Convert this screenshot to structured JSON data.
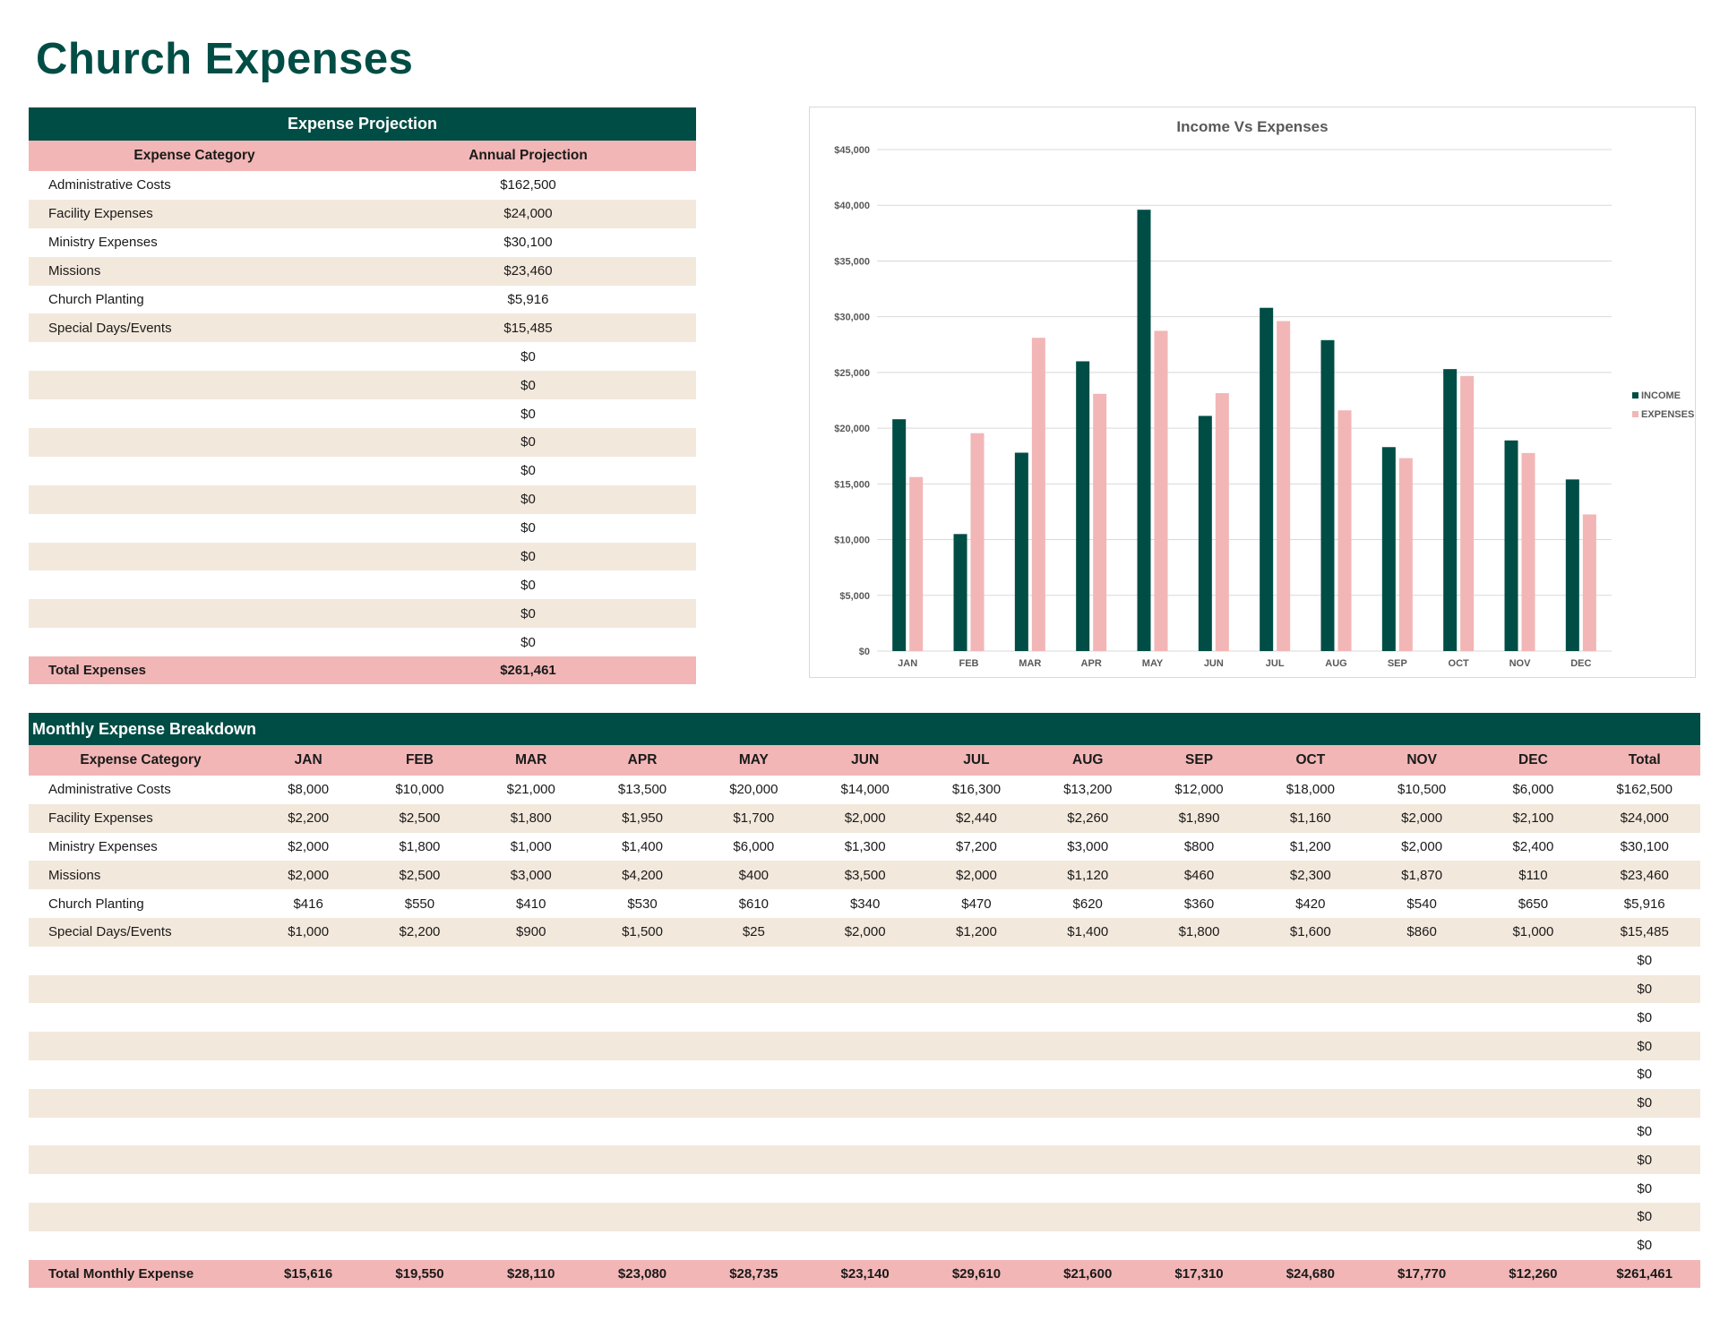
{
  "page_title": "Church Expenses",
  "projection": {
    "title": "Expense Projection",
    "col_category": "Expense Category",
    "col_projection": "Annual Projection",
    "rows": [
      {
        "category": "Administrative Costs",
        "amount": "$162,500"
      },
      {
        "category": "Facility Expenses",
        "amount": "$24,000"
      },
      {
        "category": "Ministry Expenses",
        "amount": "$30,100"
      },
      {
        "category": "Missions",
        "amount": "$23,460"
      },
      {
        "category": "Church Planting",
        "amount": "$5,916"
      },
      {
        "category": "Special Days/Events",
        "amount": "$15,485"
      },
      {
        "category": "",
        "amount": "$0"
      },
      {
        "category": "",
        "amount": "$0"
      },
      {
        "category": "",
        "amount": "$0"
      },
      {
        "category": "",
        "amount": "$0"
      },
      {
        "category": "",
        "amount": "$0"
      },
      {
        "category": "",
        "amount": "$0"
      },
      {
        "category": "",
        "amount": "$0"
      },
      {
        "category": "",
        "amount": "$0"
      },
      {
        "category": "",
        "amount": "$0"
      },
      {
        "category": "",
        "amount": "$0"
      },
      {
        "category": "",
        "amount": "$0"
      }
    ],
    "total_label": "Total Expenses",
    "total_value": "$261,461"
  },
  "chart_data": {
    "type": "bar",
    "title": "Income Vs Expenses",
    "categories": [
      "JAN",
      "FEB",
      "MAR",
      "APR",
      "MAY",
      "JUN",
      "JUL",
      "AUG",
      "SEP",
      "OCT",
      "NOV",
      "DEC"
    ],
    "series": [
      {
        "name": "INCOME",
        "color": "#004d45",
        "values": [
          20800,
          10500,
          17800,
          26000,
          39600,
          21100,
          30800,
          27900,
          18300,
          25300,
          18900,
          15400
        ]
      },
      {
        "name": "EXPENSES",
        "color": "#f2b6b6",
        "values": [
          15616,
          19550,
          28110,
          23080,
          28735,
          23140,
          29610,
          21600,
          17310,
          24680,
          17770,
          12260
        ]
      }
    ],
    "ylim": [
      0,
      45000
    ],
    "yticks": [
      "$0",
      "$5,000",
      "$10,000",
      "$15,000",
      "$20,000",
      "$25,000",
      "$30,000",
      "$35,000",
      "$40,000",
      "$45,000"
    ],
    "ytick_values": [
      0,
      5000,
      10000,
      15000,
      20000,
      25000,
      30000,
      35000,
      40000,
      45000
    ],
    "legend_position": "right",
    "grid": true
  },
  "monthly": {
    "title": "Monthly Expense Breakdown",
    "headers": [
      "Expense Category",
      "JAN",
      "FEB",
      "MAR",
      "APR",
      "MAY",
      "JUN",
      "JUL",
      "AUG",
      "SEP",
      "OCT",
      "NOV",
      "DEC",
      "Total"
    ],
    "rows": [
      [
        "Administrative Costs",
        "$8,000",
        "$10,000",
        "$21,000",
        "$13,500",
        "$20,000",
        "$14,000",
        "$16,300",
        "$13,200",
        "$12,000",
        "$18,000",
        "$10,500",
        "$6,000",
        "$162,500"
      ],
      [
        "Facility Expenses",
        "$2,200",
        "$2,500",
        "$1,800",
        "$1,950",
        "$1,700",
        "$2,000",
        "$2,440",
        "$2,260",
        "$1,890",
        "$1,160",
        "$2,000",
        "$2,100",
        "$24,000"
      ],
      [
        "Ministry Expenses",
        "$2,000",
        "$1,800",
        "$1,000",
        "$1,400",
        "$6,000",
        "$1,300",
        "$7,200",
        "$3,000",
        "$800",
        "$1,200",
        "$2,000",
        "$2,400",
        "$30,100"
      ],
      [
        "Missions",
        "$2,000",
        "$2,500",
        "$3,000",
        "$4,200",
        "$400",
        "$3,500",
        "$2,000",
        "$1,120",
        "$460",
        "$2,300",
        "$1,870",
        "$110",
        "$23,460"
      ],
      [
        "Church Planting",
        "$416",
        "$550",
        "$410",
        "$530",
        "$610",
        "$340",
        "$470",
        "$620",
        "$360",
        "$420",
        "$540",
        "$650",
        "$5,916"
      ],
      [
        "Special Days/Events",
        "$1,000",
        "$2,200",
        "$900",
        "$1,500",
        "$25",
        "$2,000",
        "$1,200",
        "$1,400",
        "$1,800",
        "$1,600",
        "$860",
        "$1,000",
        "$15,485"
      ],
      [
        "",
        "",
        "",
        "",
        "",
        "",
        "",
        "",
        "",
        "",
        "",
        "",
        "",
        "$0"
      ],
      [
        "",
        "",
        "",
        "",
        "",
        "",
        "",
        "",
        "",
        "",
        "",
        "",
        "",
        "$0"
      ],
      [
        "",
        "",
        "",
        "",
        "",
        "",
        "",
        "",
        "",
        "",
        "",
        "",
        "",
        "$0"
      ],
      [
        "",
        "",
        "",
        "",
        "",
        "",
        "",
        "",
        "",
        "",
        "",
        "",
        "",
        "$0"
      ],
      [
        "",
        "",
        "",
        "",
        "",
        "",
        "",
        "",
        "",
        "",
        "",
        "",
        "",
        "$0"
      ],
      [
        "",
        "",
        "",
        "",
        "",
        "",
        "",
        "",
        "",
        "",
        "",
        "",
        "",
        "$0"
      ],
      [
        "",
        "",
        "",
        "",
        "",
        "",
        "",
        "",
        "",
        "",
        "",
        "",
        "",
        "$0"
      ],
      [
        "",
        "",
        "",
        "",
        "",
        "",
        "",
        "",
        "",
        "",
        "",
        "",
        "",
        "$0"
      ],
      [
        "",
        "",
        "",
        "",
        "",
        "",
        "",
        "",
        "",
        "",
        "",
        "",
        "",
        "$0"
      ],
      [
        "",
        "",
        "",
        "",
        "",
        "",
        "",
        "",
        "",
        "",
        "",
        "",
        "",
        "$0"
      ],
      [
        "",
        "",
        "",
        "",
        "",
        "",
        "",
        "",
        "",
        "",
        "",
        "",
        "",
        "$0"
      ]
    ],
    "total_row": [
      "Total Monthly Expense",
      "$15,616",
      "$19,550",
      "$28,110",
      "$23,080",
      "$28,735",
      "$23,140",
      "$29,610",
      "$21,600",
      "$17,310",
      "$24,680",
      "$17,770",
      "$12,260",
      "$261,461"
    ]
  }
}
